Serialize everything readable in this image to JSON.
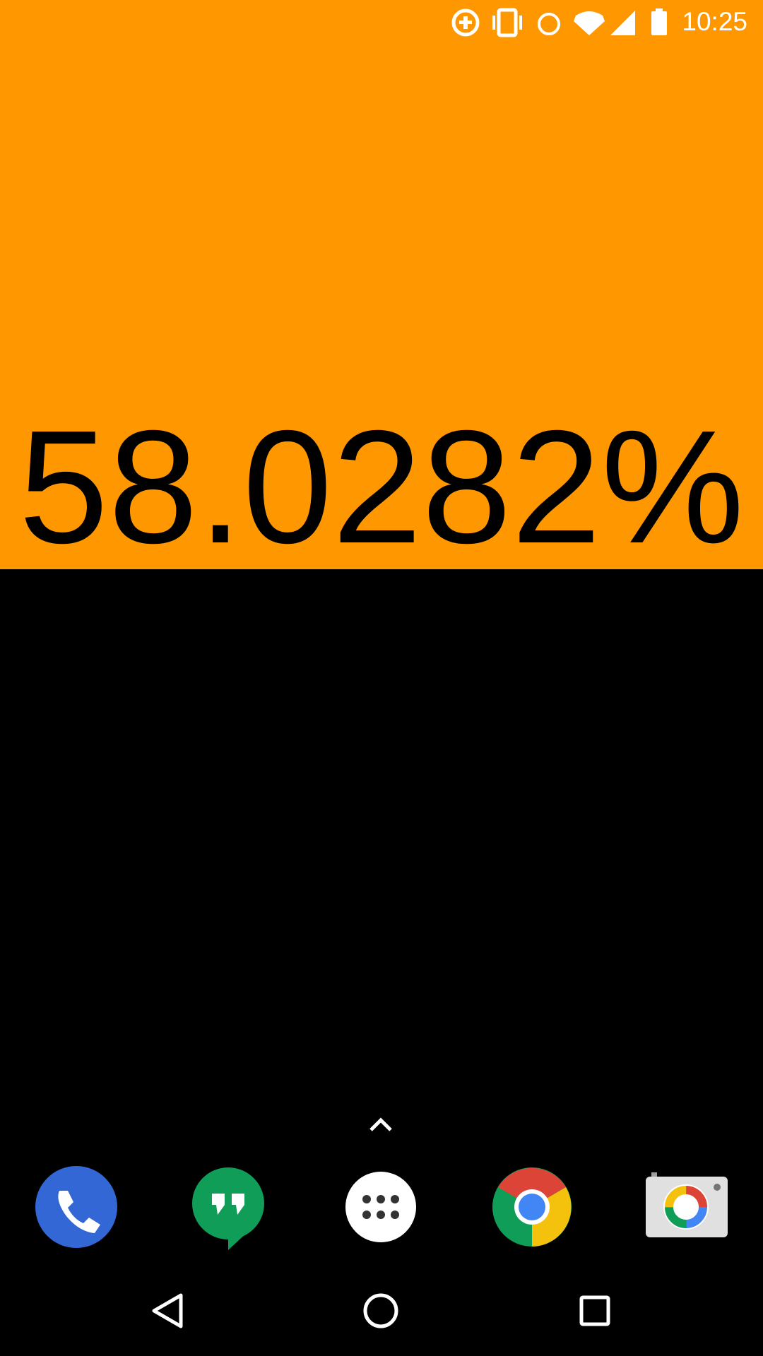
{
  "status_bar": {
    "time": "10:25"
  },
  "content": {
    "percent_text": "58.0282%"
  }
}
